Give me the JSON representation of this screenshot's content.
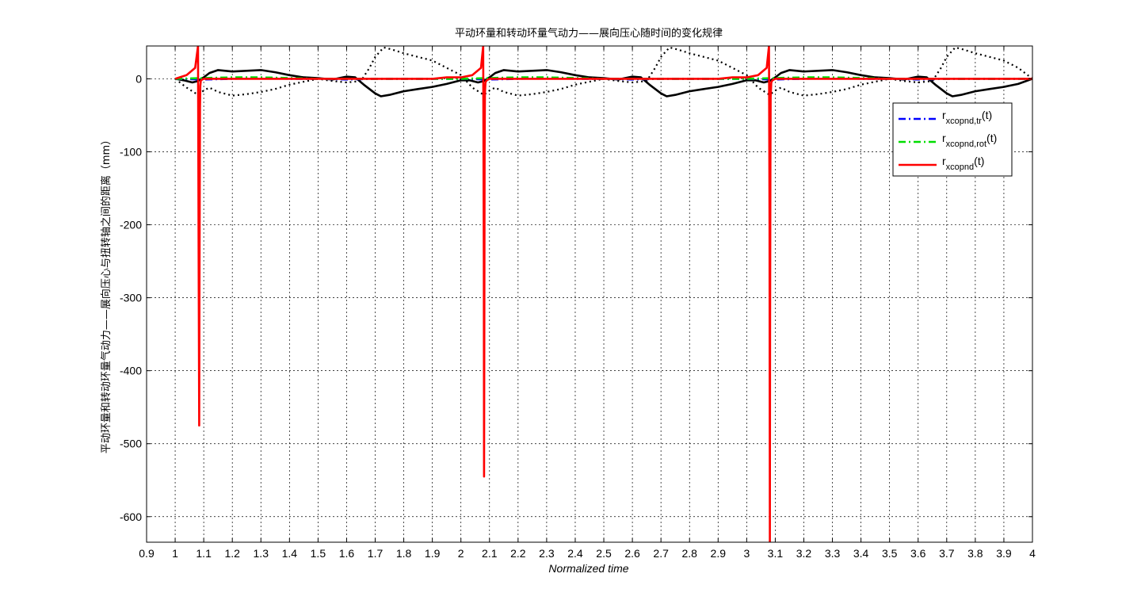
{
  "chart_data": {
    "type": "line",
    "title": "平动环量和转动环量气动力——展向压心随时间的变化规律",
    "xlabel": "Normalized time",
    "ylabel": "平动环量和转动环量气动力——展向压心与扭转轴之间的距离（mm）",
    "xlim": [
      0.9,
      4.0
    ],
    "ylim": [
      -635,
      45
    ],
    "xticks": [
      "0.9",
      "1",
      "1.1",
      "1.2",
      "1.3",
      "1.4",
      "1.5",
      "1.6",
      "1.7",
      "1.8",
      "1.9",
      "2",
      "2.1",
      "2.2",
      "2.3",
      "2.4",
      "2.5",
      "2.6",
      "2.7",
      "2.8",
      "2.9",
      "3",
      "3.1",
      "3.2",
      "3.3",
      "3.4",
      "3.5",
      "3.6",
      "3.7",
      "3.8",
      "3.9",
      "4"
    ],
    "yticks": [
      "0",
      "-100",
      "-200",
      "-300",
      "-400",
      "-500",
      "-600"
    ],
    "grid": true,
    "legend_position": "top-right",
    "legend": [
      {
        "base": "r",
        "sub": "xcopnd,tr",
        "suffix": "(t)",
        "color": "#0000ff",
        "style": "dash-dot"
      },
      {
        "base": "r",
        "sub": "xcopnd,rot",
        "suffix": "(t)",
        "color": "#00dd00",
        "style": "dash-dot"
      },
      {
        "base": "r",
        "sub": "xcopnd",
        "suffix": "(t)",
        "color": "#ff0000",
        "style": "solid"
      }
    ],
    "series": [
      {
        "key": "black_solid",
        "color": "#000000",
        "style": "solid",
        "x": [
          1.0,
          1.03,
          1.06,
          1.08,
          1.1,
          1.12,
          1.15,
          1.2,
          1.25,
          1.3,
          1.35,
          1.4,
          1.45,
          1.5,
          1.55,
          1.6,
          1.63,
          1.66,
          1.7,
          1.72,
          1.75,
          1.8,
          1.85,
          1.9,
          1.95,
          2.0,
          2.03,
          2.06,
          2.08,
          2.1,
          2.12,
          2.15,
          2.2,
          2.25,
          2.3,
          2.35,
          2.4,
          2.45,
          2.5,
          2.55,
          2.6,
          2.63,
          2.66,
          2.7,
          2.72,
          2.75,
          2.8,
          2.85,
          2.9,
          2.95,
          3.0,
          3.03,
          3.06,
          3.08,
          3.1,
          3.12,
          3.15,
          3.2,
          3.25,
          3.3,
          3.35,
          3.4,
          3.45,
          3.5,
          3.55,
          3.6,
          3.63,
          3.66,
          3.7,
          3.72,
          3.75,
          3.8,
          3.85,
          3.9,
          3.95,
          4.0
        ],
        "y": [
          0,
          -2,
          -5,
          -3,
          2,
          8,
          12,
          10,
          11,
          12,
          9,
          5,
          2,
          1,
          -1,
          3,
          2,
          -8,
          -20,
          -24,
          -22,
          -17,
          -14,
          -11,
          -7,
          -2,
          -2,
          -5,
          -3,
          2,
          8,
          12,
          10,
          11,
          12,
          9,
          5,
          2,
          1,
          -1,
          3,
          2,
          -8,
          -20,
          -24,
          -22,
          -17,
          -14,
          -11,
          -7,
          -2,
          -2,
          -5,
          -3,
          2,
          8,
          12,
          10,
          11,
          12,
          9,
          5,
          2,
          1,
          -1,
          3,
          2,
          -8,
          -20,
          -24,
          -22,
          -17,
          -14,
          -11,
          -7,
          0
        ]
      },
      {
        "key": "black_dotted",
        "color": "#000000",
        "style": "dotted",
        "x": [
          1.0,
          1.04,
          1.08,
          1.1,
          1.12,
          1.15,
          1.2,
          1.25,
          1.3,
          1.35,
          1.4,
          1.45,
          1.5,
          1.55,
          1.6,
          1.65,
          1.68,
          1.7,
          1.73,
          1.76,
          1.8,
          1.85,
          1.9,
          1.95,
          2.0,
          2.04,
          2.08,
          2.1,
          2.12,
          2.15,
          2.2,
          2.25,
          2.3,
          2.35,
          2.4,
          2.45,
          2.5,
          2.55,
          2.6,
          2.65,
          2.68,
          2.7,
          2.73,
          2.76,
          2.8,
          2.85,
          2.9,
          2.95,
          3.0,
          3.04,
          3.08,
          3.1,
          3.12,
          3.15,
          3.2,
          3.25,
          3.3,
          3.35,
          3.4,
          3.45,
          3.5,
          3.55,
          3.6,
          3.65,
          3.68,
          3.7,
          3.73,
          3.76,
          3.8,
          3.85,
          3.9,
          3.95,
          4.0
        ],
        "y": [
          0,
          -12,
          -22,
          -16,
          -12,
          -18,
          -23,
          -21,
          -18,
          -14,
          -8,
          -4,
          0,
          -3,
          -5,
          -3,
          15,
          30,
          43,
          40,
          35,
          30,
          25,
          15,
          5,
          -12,
          -22,
          -16,
          -12,
          -18,
          -23,
          -21,
          -18,
          -14,
          -8,
          -4,
          0,
          -3,
          -5,
          -3,
          15,
          30,
          43,
          40,
          35,
          30,
          25,
          15,
          5,
          -12,
          -22,
          -16,
          -12,
          -18,
          -23,
          -21,
          -18,
          -14,
          -8,
          -4,
          0,
          -3,
          -5,
          -3,
          15,
          30,
          43,
          40,
          35,
          30,
          25,
          15,
          0
        ]
      },
      {
        "key": "blue_dashdot",
        "color": "#0000ff",
        "style": "dash-dot",
        "x": [
          1.0,
          1.1,
          1.2,
          1.3,
          1.4,
          1.5,
          1.6,
          1.7,
          1.8,
          1.9,
          2.0,
          2.1,
          2.2,
          2.3,
          2.4,
          2.5,
          2.6,
          2.7,
          2.8,
          2.9,
          3.0,
          3.1,
          3.2,
          3.3,
          3.4,
          3.5,
          3.6,
          3.7,
          3.8,
          3.9,
          4.0
        ],
        "y": [
          0,
          -1,
          0,
          1,
          0,
          0,
          -1,
          0,
          0,
          0,
          0,
          -1,
          0,
          1,
          0,
          0,
          -1,
          0,
          0,
          0,
          0,
          -1,
          0,
          1,
          0,
          0,
          -1,
          0,
          0,
          0,
          0
        ]
      },
      {
        "key": "green_dashdot",
        "color": "#00dd00",
        "style": "dash-dot",
        "x": [
          1.0,
          1.1,
          1.2,
          1.3,
          1.4,
          1.5,
          1.6,
          1.7,
          1.8,
          1.9,
          2.0,
          2.1,
          2.2,
          2.3,
          2.4,
          2.5,
          2.6,
          2.7,
          2.8,
          2.9,
          3.0,
          3.1,
          3.2,
          3.3,
          3.4,
          3.5,
          3.6,
          3.7,
          3.8,
          3.9,
          4.0
        ],
        "y": [
          0,
          1,
          2,
          2,
          1,
          0,
          0,
          0,
          0,
          0,
          0,
          1,
          2,
          2,
          1,
          0,
          0,
          0,
          0,
          0,
          0,
          1,
          2,
          2,
          1,
          0,
          0,
          0,
          0,
          0,
          0
        ]
      },
      {
        "key": "red_solid",
        "color": "#ff0000",
        "style": "solid",
        "x": [
          1.0,
          1.04,
          1.07,
          1.08,
          1.082,
          1.084,
          1.085,
          1.086,
          1.087,
          1.088,
          1.09,
          1.1,
          1.2,
          1.3,
          1.4,
          1.5,
          1.6,
          1.7,
          1.8,
          1.9,
          1.95,
          2.0,
          2.04,
          2.07,
          2.078,
          2.08,
          2.081,
          2.082,
          2.083,
          2.084,
          2.086,
          2.09,
          2.1,
          2.2,
          2.3,
          2.4,
          2.5,
          2.6,
          2.7,
          2.8,
          2.9,
          2.95,
          3.0,
          3.04,
          3.07,
          3.078,
          3.08,
          3.081,
          3.082,
          3.083,
          3.084,
          3.086,
          3.09,
          3.1,
          3.2,
          3.3,
          3.4,
          3.5,
          3.6,
          3.7,
          3.8,
          3.9,
          4.0
        ],
        "y": [
          0,
          5,
          15,
          45,
          -215,
          -475,
          -300,
          -150,
          -40,
          -10,
          -2,
          0,
          0,
          0,
          0,
          0,
          0,
          0,
          0,
          0,
          2,
          2,
          5,
          15,
          45,
          -250,
          -545,
          -300,
          -100,
          -20,
          -5,
          -2,
          0,
          0,
          0,
          0,
          0,
          0,
          0,
          0,
          0,
          2,
          2,
          5,
          15,
          45,
          -200,
          -635,
          -330,
          -120,
          -25,
          -5,
          -2,
          0,
          0,
          0,
          0,
          0,
          0,
          0,
          0,
          0,
          0
        ]
      }
    ]
  }
}
